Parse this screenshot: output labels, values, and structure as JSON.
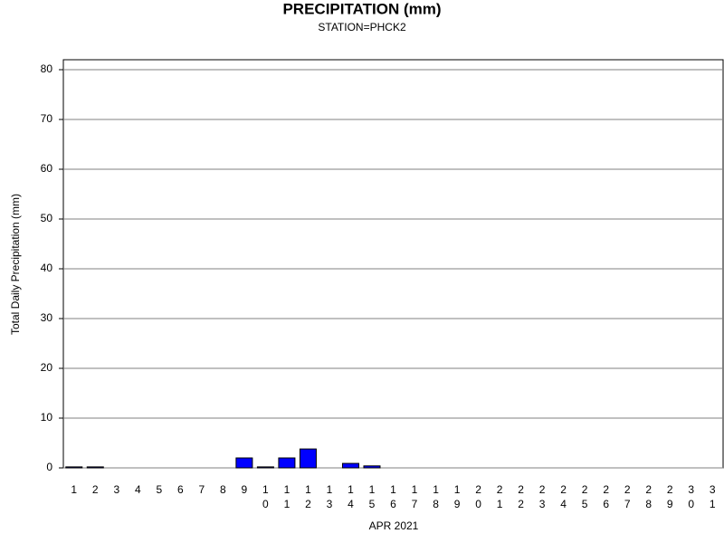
{
  "chart_data": {
    "type": "bar",
    "title": "PRECIPITATION (mm)",
    "subtitle": "STATION=PHCK2",
    "x_label": "APR 2021",
    "y_label": "Total Daily Precipitation (mm)",
    "categories": [
      "1",
      "2",
      "3",
      "4",
      "5",
      "6",
      "7",
      "8",
      "9",
      "10",
      "11",
      "12",
      "13",
      "14",
      "15",
      "16",
      "17",
      "18",
      "19",
      "20",
      "21",
      "22",
      "23",
      "24",
      "25",
      "26",
      "27",
      "28",
      "29",
      "30",
      "31"
    ],
    "values": [
      0.2,
      0.2,
      0,
      0,
      0,
      0,
      0,
      0,
      2.0,
      0.2,
      2.0,
      3.8,
      0,
      0.9,
      0.4,
      0,
      0,
      0,
      0,
      0,
      0,
      0,
      0,
      0,
      0,
      0,
      0,
      0,
      0,
      0,
      0
    ],
    "color": "#0000ff",
    "ylim": [
      0,
      82
    ],
    "yticks": [
      0,
      10,
      20,
      30,
      40,
      50,
      60,
      70,
      80
    ],
    "grid": true
  }
}
